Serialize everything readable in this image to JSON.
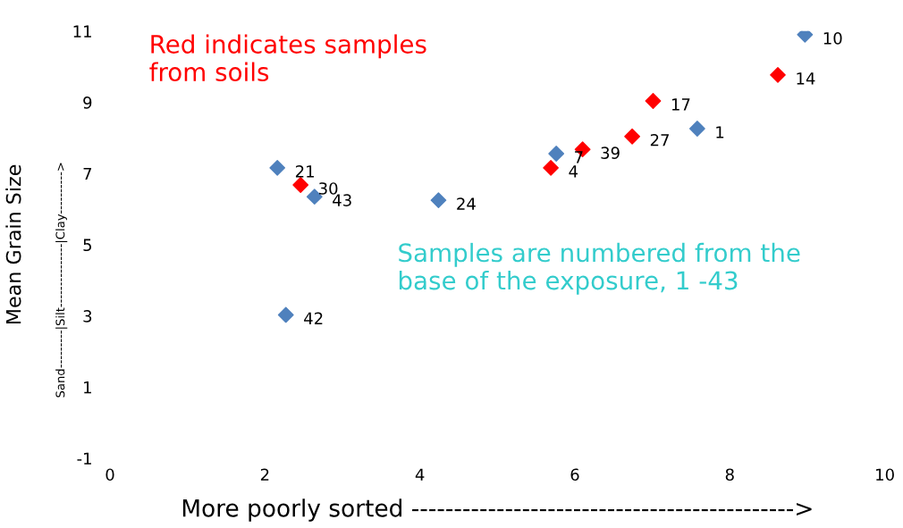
{
  "chart_data": {
    "type": "scatter",
    "xlabel": "More poorly sorted --------------------------------------------->",
    "ylabel": "Mean Grain Size",
    "x": [
      8.97,
      8.62,
      7.01,
      7.58,
      6.74,
      6.1,
      5.76,
      5.69,
      2.16,
      2.46,
      2.64,
      4.24,
      2.27
    ],
    "values": [
      10.9,
      9.77,
      9.04,
      8.26,
      8.04,
      7.68,
      7.56,
      7.16,
      7.16,
      6.68,
      6.35,
      6.25,
      3.03
    ],
    "colors": [
      "#4f81bd",
      "#ff0000",
      "#ff0000",
      "#4f81bd",
      "#ff0000",
      "#ff0000",
      "#4f81bd",
      "#ff0000",
      "#4f81bd",
      "#ff0000",
      "#4f81bd",
      "#4f81bd",
      "#4f81bd"
    ],
    "marker": "diamond",
    "grid": false,
    "xlim": [
      0,
      10
    ],
    "xticks": [
      0,
      2,
      4,
      6,
      8,
      10
    ],
    "ylim": [
      -1,
      11
    ],
    "yticks": [
      -1,
      1,
      3,
      5,
      7,
      9,
      11
    ],
    "annotations": [
      {
        "text": "10",
        "x": 8.97,
        "y": 10.9
      },
      {
        "text": "14",
        "x": 8.62,
        "y": 9.77
      },
      {
        "text": "17",
        "x": 7.01,
        "y": 9.04
      },
      {
        "text": "1",
        "x": 7.58,
        "y": 8.26
      },
      {
        "text": "27",
        "x": 6.74,
        "y": 8.04
      },
      {
        "text": "39",
        "x": 6.1,
        "y": 7.68
      },
      {
        "text": "7",
        "x": 5.76,
        "y": 7.56
      },
      {
        "text": "4",
        "x": 5.69,
        "y": 7.16
      },
      {
        "text": "21",
        "x": 2.16,
        "y": 7.16
      },
      {
        "text": "30",
        "x": 2.46,
        "y": 6.68
      },
      {
        "text": "43",
        "x": 2.64,
        "y": 6.35
      },
      {
        "text": "24",
        "x": 4.24,
        "y": 6.25
      },
      {
        "text": "42",
        "x": 2.27,
        "y": 3.03
      },
      "Red indicates samples\nfrom soils",
      "Samples are numbered from the\nbase of the exposure, 1 -43",
      "Sand---------|Silt---------------|Clay---------->"
    ]
  }
}
